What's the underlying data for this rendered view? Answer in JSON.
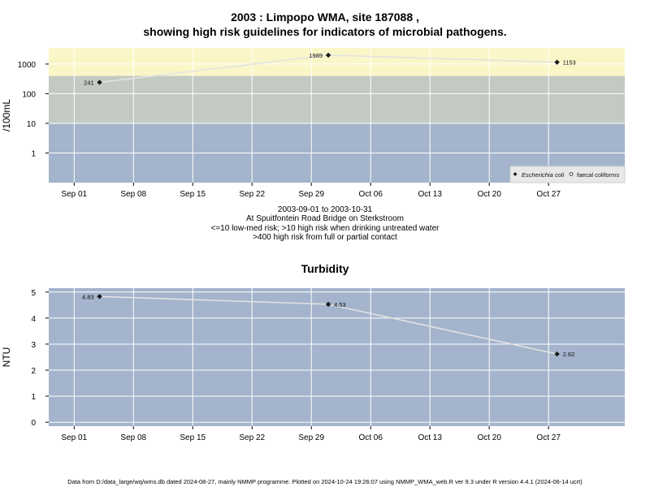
{
  "page": {
    "title_line1": "2003 : Limpopo WMA, site 187088 ,",
    "title_line2": "showing high risk guidelines for indicators of microbial pathogens.",
    "caption_line1": "2003-09-01 to 2003-10-31",
    "caption_line2": "At Spuitfontein Road Bridge on Sterkstroom",
    "caption_line3": "<=10 low-med risk; >10 high risk when drinking untreated water",
    "caption_line4": ">400 high risk from full or partial contact",
    "footer": "Data from D:/data_large/wq/wms.db dated 2024-08-27, mainly NMMP programme. Plotted on 2024-10-24 19:26:07 using NMMP_WMA_web.R ver 9.3 under R version 4.4.1 (2024-06-14 ucrt)"
  },
  "colors": {
    "band_low": "#a3b4cc",
    "band_mid": "#c3cac2",
    "band_high": "#fbf6c8",
    "panel_bg": "#a3b4cc",
    "grid": "#ffffff",
    "line": "#e2e2e2",
    "point": "#1a1a1a"
  },
  "chart_data": [
    {
      "type": "line",
      "title": "",
      "ylabel": "/100mL",
      "xlabel": "",
      "y_scale": "log10",
      "ylim": [
        0.1,
        3500
      ],
      "xlim": [
        "2003-08-29",
        "2003-11-05"
      ],
      "x_ticks": [
        "2003-09-01",
        "2003-09-08",
        "2003-09-15",
        "2003-09-22",
        "2003-09-29",
        "2003-10-06",
        "2003-10-13",
        "2003-10-20",
        "2003-10-27"
      ],
      "x_tick_labels": [
        "Sep 01",
        "Sep 08",
        "Sep 15",
        "Sep 22",
        "Sep 29",
        "Oct 06",
        "Oct 13",
        "Oct 20",
        "Oct 27"
      ],
      "y_ticks": [
        1,
        10,
        100,
        1000
      ],
      "y_tick_labels": [
        "1",
        "10",
        "100",
        "1000"
      ],
      "bands": [
        {
          "from": 0.1,
          "to": 10,
          "color": "#a3b4cc"
        },
        {
          "from": 10,
          "to": 400,
          "color": "#c3cac2"
        },
        {
          "from": 400,
          "to": 3500,
          "color": "#fbf6c8"
        }
      ],
      "series": [
        {
          "name": "Escherichia coli",
          "x": [
            "2003-09-04",
            "2003-10-01",
            "2003-10-28"
          ],
          "values": [
            241,
            1989,
            1153
          ],
          "labels": [
            "241",
            "1989",
            "1153"
          ],
          "label_side": [
            "left",
            "left",
            "right"
          ]
        }
      ],
      "legend": {
        "position": "bottom-right",
        "entries": [
          "Escherichia coli",
          "faecal coliforms"
        ]
      }
    },
    {
      "type": "line",
      "title": "Turbidity",
      "ylabel": "NTU",
      "xlabel": "",
      "y_scale": "linear",
      "ylim": [
        -0.15,
        5.15
      ],
      "xlim": [
        "2003-08-29",
        "2003-11-05"
      ],
      "x_ticks": [
        "2003-09-01",
        "2003-09-08",
        "2003-09-15",
        "2003-09-22",
        "2003-09-29",
        "2003-10-06",
        "2003-10-13",
        "2003-10-20",
        "2003-10-27"
      ],
      "x_tick_labels": [
        "Sep 01",
        "Sep 08",
        "Sep 15",
        "Sep 22",
        "Sep 29",
        "Oct 06",
        "Oct 13",
        "Oct 20",
        "Oct 27"
      ],
      "y_ticks": [
        0,
        1,
        2,
        3,
        4,
        5
      ],
      "y_tick_labels": [
        "0",
        "1",
        "2",
        "3",
        "4",
        "5"
      ],
      "series": [
        {
          "x": [
            "2003-09-04",
            "2003-10-01",
            "2003-10-28"
          ],
          "values": [
            4.83,
            4.53,
            2.62
          ],
          "labels": [
            "4.83",
            "4.53",
            "2.62"
          ],
          "label_side": [
            "left",
            "right",
            "right"
          ]
        }
      ]
    }
  ]
}
